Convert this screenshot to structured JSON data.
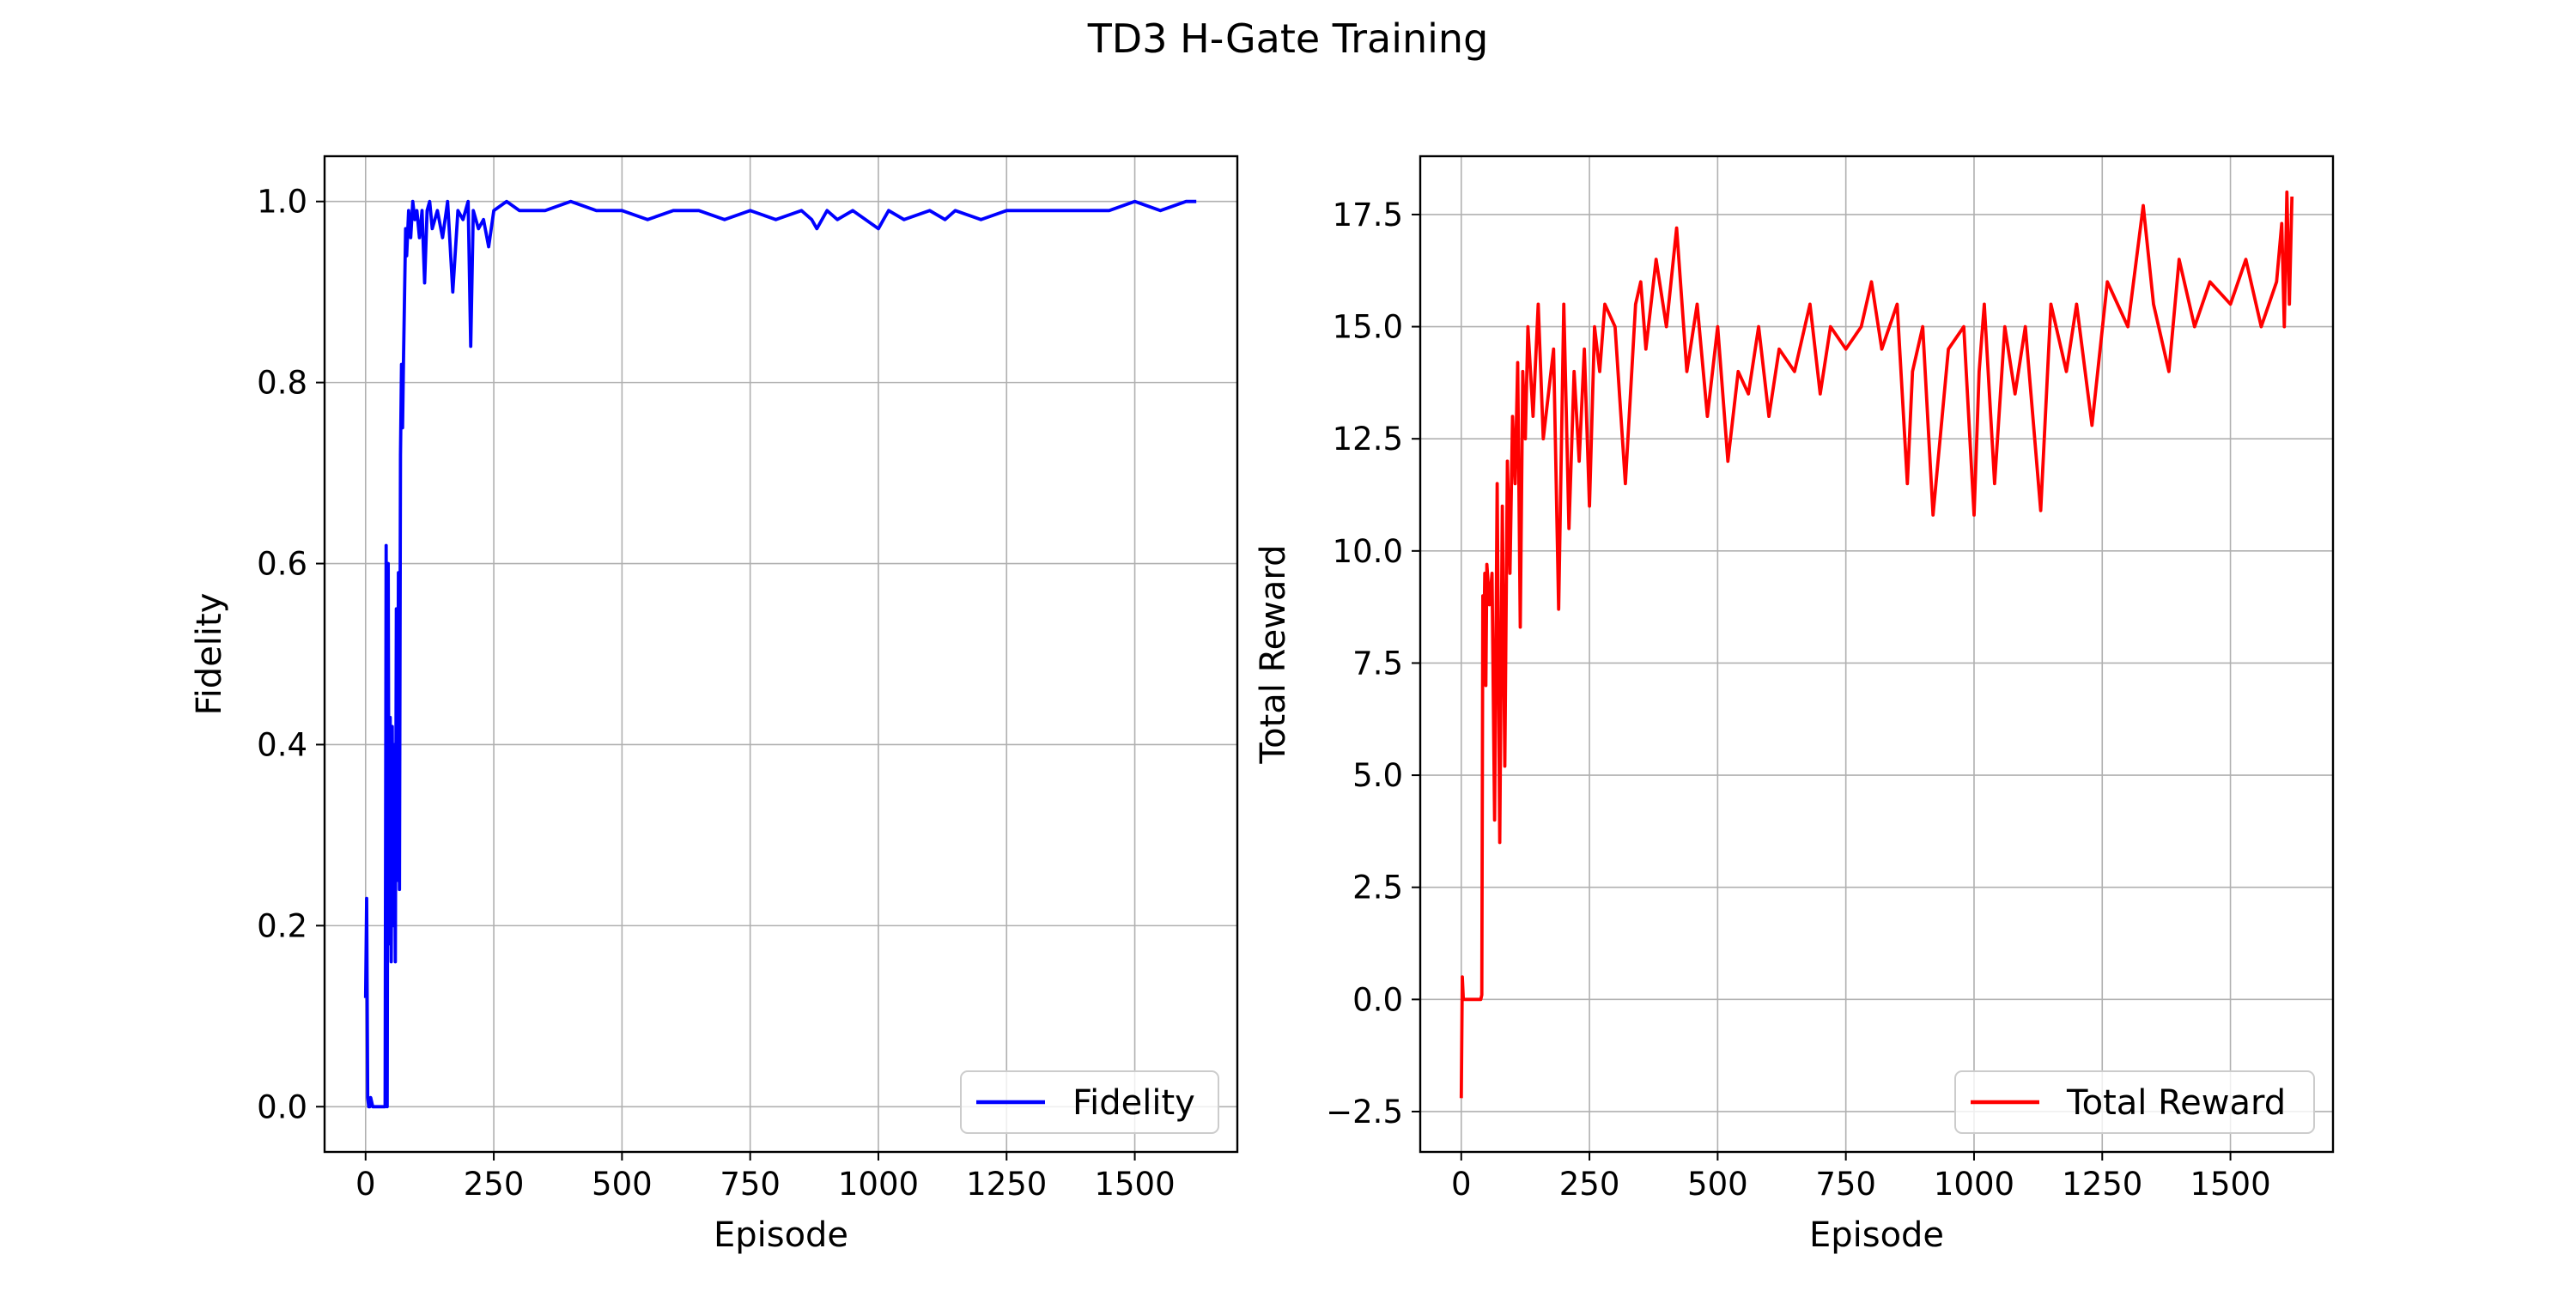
{
  "figure": {
    "title": "TD3 H-Gate Training"
  },
  "chart_data": [
    {
      "type": "line",
      "xlabel": "Episode",
      "ylabel": "Fidelity",
      "xlim": [
        -80,
        1700
      ],
      "ylim": [
        -0.05,
        1.05
      ],
      "xticks": [
        0,
        250,
        500,
        750,
        1000,
        1250,
        1500
      ],
      "yticks": [
        0.0,
        0.2,
        0.4,
        0.6,
        0.8,
        1.0
      ],
      "ytick_labels": [
        "0.0",
        "0.2",
        "0.4",
        "0.6",
        "0.8",
        "1.0"
      ],
      "grid": true,
      "legend": "bottom-right",
      "color": "#0000ff",
      "series": [
        {
          "name": "Fidelity",
          "x": [
            0,
            2,
            4,
            6,
            8,
            10,
            14,
            18,
            22,
            26,
            30,
            34,
            38,
            40,
            42,
            44,
            46,
            48,
            50,
            52,
            54,
            56,
            58,
            60,
            62,
            64,
            66,
            68,
            70,
            72,
            74,
            76,
            78,
            80,
            84,
            88,
            92,
            96,
            100,
            105,
            110,
            115,
            120,
            125,
            130,
            140,
            150,
            160,
            170,
            180,
            190,
            200,
            205,
            210,
            220,
            230,
            240,
            250,
            275,
            300,
            350,
            400,
            450,
            500,
            550,
            600,
            650,
            700,
            750,
            800,
            850,
            870,
            880,
            900,
            920,
            950,
            1000,
            1010,
            1020,
            1050,
            1100,
            1130,
            1150,
            1200,
            1250,
            1300,
            1350,
            1400,
            1450,
            1500,
            1550,
            1600,
            1620
          ],
          "values": [
            0.12,
            0.23,
            0.01,
            0.0,
            0.0,
            0.01,
            0.0,
            0.0,
            0.0,
            0.0,
            0.0,
            0.0,
            0.0,
            0.62,
            0.0,
            0.6,
            0.18,
            0.43,
            0.16,
            0.42,
            0.2,
            0.4,
            0.16,
            0.55,
            0.25,
            0.59,
            0.24,
            0.72,
            0.82,
            0.75,
            0.83,
            0.9,
            0.97,
            0.94,
            0.99,
            0.96,
            1.0,
            0.98,
            0.99,
            0.96,
            0.99,
            0.91,
            0.99,
            1.0,
            0.97,
            0.99,
            0.96,
            1.0,
            0.9,
            0.99,
            0.98,
            1.0,
            0.84,
            0.99,
            0.97,
            0.98,
            0.95,
            0.99,
            1.0,
            0.99,
            0.99,
            1.0,
            0.99,
            0.99,
            0.98,
            0.99,
            0.99,
            0.98,
            0.99,
            0.98,
            0.99,
            0.98,
            0.97,
            0.99,
            0.98,
            0.99,
            0.97,
            0.98,
            0.99,
            0.98,
            0.99,
            0.98,
            0.99,
            0.98,
            0.99,
            0.99,
            0.99,
            0.99,
            0.99,
            1.0,
            0.99,
            1.0,
            1.0
          ]
        }
      ]
    },
    {
      "type": "line",
      "xlabel": "Episode",
      "ylabel": "Total Reward",
      "xlim": [
        -80,
        1700
      ],
      "ylim": [
        -3.4,
        18.8
      ],
      "xticks": [
        0,
        250,
        500,
        750,
        1000,
        1250,
        1500
      ],
      "yticks": [
        -2.5,
        0.0,
        2.5,
        5.0,
        7.5,
        10.0,
        12.5,
        15.0,
        17.5
      ],
      "ytick_labels": [
        "−2.5",
        "0.0",
        "2.5",
        "5.0",
        "7.5",
        "10.0",
        "12.5",
        "15.0",
        "17.5"
      ],
      "grid": true,
      "legend": "bottom-right",
      "color": "#ff0000",
      "series": [
        {
          "name": "Total Reward",
          "x": [
            0,
            2,
            4,
            6,
            10,
            20,
            30,
            38,
            40,
            42,
            44,
            46,
            48,
            50,
            55,
            60,
            65,
            70,
            75,
            80,
            85,
            90,
            95,
            100,
            105,
            110,
            115,
            120,
            125,
            130,
            140,
            150,
            160,
            170,
            180,
            190,
            200,
            210,
            220,
            230,
            240,
            250,
            260,
            270,
            280,
            300,
            320,
            340,
            350,
            360,
            380,
            400,
            420,
            440,
            460,
            480,
            500,
            520,
            540,
            560,
            580,
            600,
            620,
            650,
            680,
            700,
            720,
            750,
            780,
            800,
            820,
            850,
            870,
            880,
            900,
            920,
            950,
            980,
            1000,
            1010,
            1020,
            1040,
            1060,
            1080,
            1100,
            1130,
            1150,
            1180,
            1200,
            1230,
            1260,
            1300,
            1330,
            1350,
            1380,
            1400,
            1430,
            1460,
            1500,
            1530,
            1560,
            1590,
            1600,
            1605,
            1610,
            1615,
            1620
          ],
          "values": [
            -2.2,
            0.5,
            0.0,
            0.0,
            0.0,
            0.0,
            0.0,
            0.0,
            0.1,
            9.0,
            8.0,
            9.5,
            7.0,
            9.7,
            8.8,
            9.5,
            4.0,
            11.5,
            3.5,
            11.0,
            5.2,
            12.0,
            9.5,
            13.0,
            11.5,
            14.2,
            8.3,
            14.0,
            12.5,
            15.0,
            13.0,
            15.5,
            12.5,
            13.5,
            14.5,
            8.7,
            15.5,
            10.5,
            14.0,
            12.0,
            14.5,
            11.0,
            15.0,
            14.0,
            15.5,
            15.0,
            11.5,
            15.5,
            16.0,
            14.5,
            16.5,
            15.0,
            17.2,
            14.0,
            15.5,
            13.0,
            15.0,
            12.0,
            14.0,
            13.5,
            15.0,
            13.0,
            14.5,
            14.0,
            15.5,
            13.5,
            15.0,
            14.5,
            15.0,
            16.0,
            14.5,
            15.5,
            11.5,
            14.0,
            15.0,
            10.8,
            14.5,
            15.0,
            10.8,
            14.0,
            15.5,
            11.5,
            15.0,
            13.5,
            15.0,
            10.9,
            15.5,
            14.0,
            15.5,
            12.8,
            16.0,
            15.0,
            17.7,
            15.5,
            14.0,
            16.5,
            15.0,
            16.0,
            15.5,
            16.5,
            15.0,
            16.0,
            17.3,
            15.0,
            18.0,
            15.5,
            17.9
          ]
        }
      ]
    }
  ]
}
